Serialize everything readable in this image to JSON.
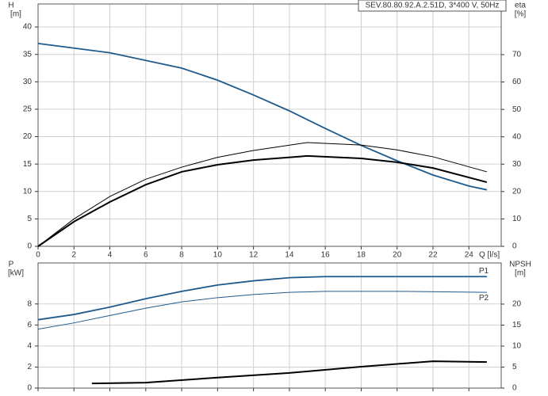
{
  "chart_data": [
    {
      "type": "line",
      "title": "SEV.80.80.92.A.2.51D, 3*400 V, 50Hz",
      "ylabel": "H",
      "yunit": "[m]",
      "y2label": "eta",
      "y2unit": "[%]",
      "xlabel": "Q [l/s]",
      "xlim": [
        0,
        25.8
      ],
      "xticks": [
        0,
        2,
        4,
        6,
        8,
        10,
        12,
        14,
        16,
        18,
        20,
        22,
        24
      ],
      "ylim": [
        0,
        44.2
      ],
      "yticks": [
        0,
        5,
        10,
        15,
        20,
        25,
        30,
        35,
        40
      ],
      "y2lim": [
        0,
        88.5
      ],
      "y2ticks": [
        0,
        10,
        20,
        30,
        40,
        50,
        60,
        70
      ],
      "grid": true,
      "series": [
        {
          "color": "#1f5a8c",
          "line_width": 1.8,
          "x": [
            0,
            4,
            8,
            10,
            12,
            14,
            16,
            18,
            20,
            22,
            24,
            25
          ],
          "values": [
            37,
            35.3,
            32.5,
            30.3,
            27.6,
            24.7,
            21.5,
            18.4,
            15.6,
            13,
            11,
            10.3
          ]
        },
        {
          "color": "#000000",
          "line_width": 1,
          "axis": "y2",
          "x": [
            0,
            2,
            4,
            6,
            8,
            10,
            12,
            15,
            18,
            20,
            22,
            25
          ],
          "values": [
            0,
            10,
            18.2,
            24.5,
            28.9,
            32.5,
            35,
            37.9,
            37,
            35.2,
            32.7,
            27.2
          ]
        },
        {
          "color": "#000000",
          "line_width": 2,
          "axis": "y2",
          "x": [
            0,
            2,
            4,
            6,
            8,
            10,
            12,
            15,
            18,
            20,
            22,
            25
          ],
          "values": [
            0,
            9,
            16.2,
            22.5,
            27.2,
            29.8,
            31.5,
            33,
            32.1,
            30.7,
            28.6,
            23.4
          ]
        }
      ]
    },
    {
      "type": "line",
      "ylabel": "P",
      "yunit": "[kW]",
      "y2label": "NPSH",
      "y2unit": "[m]",
      "xlim": [
        0,
        25.8
      ],
      "ylim": [
        0,
        11.9
      ],
      "yticks": [
        0,
        2,
        4,
        6,
        8
      ],
      "y2lim": [
        0,
        29.8
      ],
      "y2ticks": [
        0,
        5,
        10,
        15,
        20
      ],
      "grid": true,
      "series": [
        {
          "name": "P1",
          "color": "#1f5a8c",
          "line_width": 1.8,
          "x": [
            0,
            2,
            4,
            6,
            8,
            10,
            12,
            14,
            16,
            20,
            25
          ],
          "values": [
            6.5,
            7,
            7.7,
            8.5,
            9.2,
            9.8,
            10.2,
            10.5,
            10.6,
            10.6,
            10.6
          ]
        },
        {
          "name": "P2",
          "color": "#1f5a8c",
          "line_width": 1,
          "x": [
            0,
            2,
            4,
            6,
            8,
            10,
            12,
            14,
            16,
            20,
            25
          ],
          "values": [
            5.6,
            6.2,
            6.9,
            7.6,
            8.2,
            8.6,
            8.9,
            9.1,
            9.2,
            9.2,
            9.1
          ]
        },
        {
          "color": "#000000",
          "line_width": 2,
          "axis": "y2",
          "x": [
            3,
            6,
            10,
            14,
            18,
            22,
            25
          ],
          "values": [
            1.1,
            1.3,
            2.5,
            3.6,
            5.1,
            6.4,
            6.2
          ]
        }
      ]
    }
  ]
}
